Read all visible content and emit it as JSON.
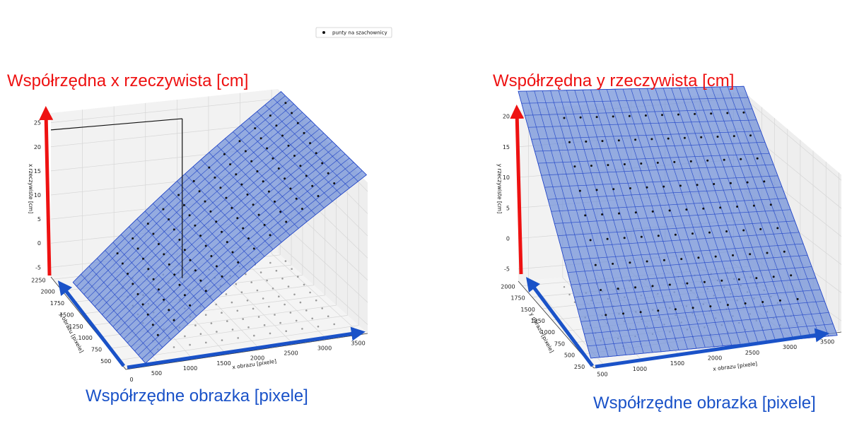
{
  "legend": {
    "label": "punty na szachownicy"
  },
  "colors": {
    "surface_fill": "#6f8fd8",
    "surface_grid": "#2448c8",
    "annotation_red": "#ee1111",
    "annotation_blue": "#1a52c8",
    "pane": "#f2f2f2",
    "grid": "#d6d6d6",
    "point": "#111111"
  },
  "chart_data": [
    {
      "type": "surface3d",
      "title": "",
      "xlabel": "x obrazu [pixele]",
      "ylabel": "y obrazu [pixele]",
      "zlabel": "x rzeczywiste [cm]",
      "x_ticks": [
        "500",
        "1000",
        "1500",
        "2000",
        "2500",
        "3000",
        "3500"
      ],
      "y_ticks": [
        "500",
        "750",
        "1000",
        "1250",
        "1500",
        "1750",
        "2000",
        "2250"
      ],
      "z_ticks": [
        "-5",
        "0",
        "5",
        "10",
        "15",
        "20",
        "25"
      ],
      "extra_tick": "0",
      "xlim": [
        0,
        3600
      ],
      "ylim": [
        300,
        2300
      ],
      "zlim": [
        -7,
        27
      ],
      "surface": {
        "x_range": [
          350,
          3650
        ],
        "y_range": [
          400,
          2300
        ],
        "z_at_x_min": -8,
        "z_at_x_max": 27,
        "z_curvature": 0.6,
        "grid_cols": 26,
        "grid_rows": 20
      },
      "points": {
        "x_range": [
          650,
          3300
        ],
        "y_range": [
          600,
          2100
        ],
        "cols": 12,
        "rows": 9
      },
      "guide_point": {
        "x": 2050,
        "y": 2250,
        "z": 23.5
      },
      "annotation_vertical": "Współrzędna x rzeczywista [cm]",
      "annotation_horizontal": "Współrzędne obrazka [pixele]"
    },
    {
      "type": "surface3d",
      "title": "",
      "xlabel": "x obrazu [pixele]",
      "ylabel": "y obrazu [pixele]",
      "zlabel": "y rzeczywiste [cm]",
      "x_ticks": [
        "500",
        "1000",
        "1500",
        "2000",
        "2500",
        "3000",
        "3500"
      ],
      "y_ticks": [
        "250",
        "500",
        "750",
        "1000",
        "1250",
        "1500",
        "1750",
        "2000"
      ],
      "z_ticks": [
        "-5",
        "0",
        "5",
        "10",
        "15",
        "20"
      ],
      "extra_tick": "",
      "xlim": [
        350,
        3650
      ],
      "ylim": [
        200,
        2100
      ],
      "zlim": [
        -7,
        21
      ],
      "surface": {
        "x_range": [
          350,
          3650
        ],
        "y_range": [
          280,
          2100
        ],
        "z_at_y_min": -7,
        "z_at_y_max": 23,
        "z_curvature": 0.4,
        "grid_cols": 28,
        "grid_rows": 22
      },
      "points": {
        "x_range": [
          700,
          3300
        ],
        "y_range": [
          550,
          1900
        ],
        "cols": 12,
        "rows": 9
      },
      "annotation_vertical": "Współrzędna y rzeczywista [cm]",
      "annotation_horizontal": "Współrzędne obrazka [pixele]"
    }
  ]
}
